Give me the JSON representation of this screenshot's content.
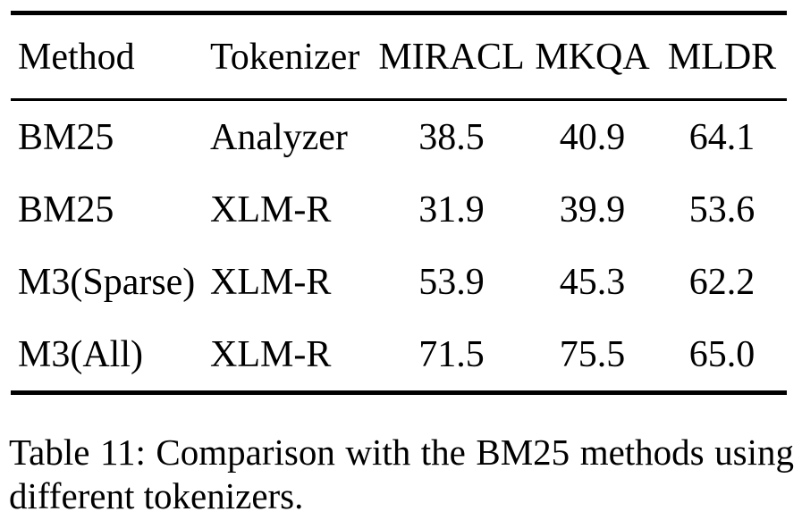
{
  "table": {
    "columns": [
      "Method",
      "Tokenizer",
      "MIRACL",
      "MKQA",
      "MLDR"
    ],
    "rows": [
      [
        "BM25",
        "Analyzer",
        "38.5",
        "40.9",
        "64.1"
      ],
      [
        "BM25",
        "XLM-R",
        "31.9",
        "39.9",
        "53.6"
      ],
      [
        "M3(Sparse)",
        "XLM-R",
        "53.9",
        "45.3",
        "62.2"
      ],
      [
        "M3(All)",
        "XLM-R",
        "71.5",
        "75.5",
        "65.0"
      ]
    ]
  },
  "caption": {
    "line1": "Table 11: Comparison with the BM25 methods using",
    "line2": "different tokenizers."
  },
  "colors": {
    "text": "#000000",
    "background": "#ffffff",
    "rule": "#000000"
  }
}
